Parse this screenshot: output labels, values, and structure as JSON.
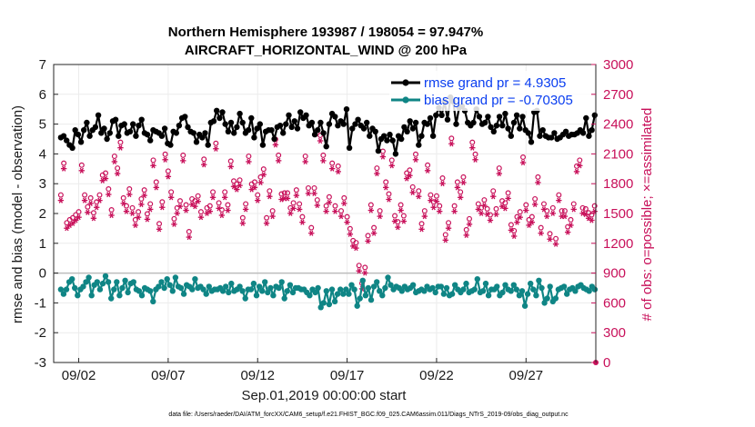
{
  "chart_data": {
    "type": "line",
    "title_line1": "Northern Hemisphere 193987 / 198054 = 97.947%",
    "title_line2": "AIRCRAFT_HORIZONTAL_WIND @ 200 hPa",
    "ylabel_left": "rmse and bias (model - observation)",
    "ylabel_right": "# of obs: o=possible; ×=assimilated",
    "xlabel": "Sep.01,2019 00:00:00 start",
    "footnote": "data file: /Users/raeder/DAI/ATM_forcXX/CAM6_setup/f.e21.FHIST_BGC.f09_025.CAM6assim.011/Diags_NTrS_2019-09/obs_diag_output.nc",
    "ylim_left": [
      -3,
      7
    ],
    "ylim_right": [
      0,
      3000
    ],
    "xlim": [
      0.6,
      30.9
    ],
    "left_ticks": [
      "-3",
      "-2",
      "-1",
      "0",
      "1",
      "2",
      "3",
      "4",
      "5",
      "6",
      "7"
    ],
    "right_ticks": [
      "0",
      "300",
      "600",
      "900",
      "1200",
      "1500",
      "1800",
      "2100",
      "2400",
      "2700",
      "3000"
    ],
    "x_ticks": [
      {
        "x": 2,
        "label": "09/02"
      },
      {
        "x": 7,
        "label": "09/07"
      },
      {
        "x": 12,
        "label": "09/12"
      },
      {
        "x": 17,
        "label": "09/17"
      },
      {
        "x": 22,
        "label": "09/22"
      },
      {
        "x": 27,
        "label": "09/27"
      }
    ],
    "legend": [
      {
        "name": "rmse grand pr = 4.9305",
        "color": "#000000"
      },
      {
        "name": "bias grand pr = -0.70305",
        "color": "#0f8585"
      }
    ],
    "colors": {
      "rmse": "#000000",
      "bias": "#0f8585",
      "obs": "#c8105a",
      "zero_line": "#bdbdbd",
      "grid": "#ececec"
    },
    "series": [
      {
        "name": "rmse",
        "values": [
          4.55,
          4.6,
          4.45,
          4.3,
          4.2,
          4.8,
          4.65,
          4.4,
          4.8,
          5.05,
          4.6,
          4.8,
          4.9,
          5.3,
          4.7,
          4.85,
          4.5,
          4.7,
          5.1,
          5.15,
          4.6,
          4.95,
          5.0,
          4.7,
          4.75,
          5.0,
          4.6,
          4.95,
          5.15,
          4.7,
          4.65,
          4.45,
          4.8,
          4.75,
          4.7,
          4.6,
          4.85,
          4.35,
          4.3,
          4.75,
          4.7,
          4.95,
          5.2,
          5.25,
          4.9,
          4.75,
          4.7,
          4.4,
          4.65,
          4.55,
          4.7,
          4.3,
          5.05,
          5.1,
          5.45,
          5.2,
          5.4,
          5.0,
          4.75,
          5.05,
          4.7,
          4.9,
          5.35,
          5.05,
          4.7,
          4.8,
          5.2,
          4.55,
          4.85,
          5.0,
          4.3,
          4.75,
          4.8,
          4.8,
          4.5,
          4.9,
          4.95,
          4.7,
          5.0,
          5.3,
          4.9,
          5.1,
          4.85,
          5.4,
          5.2,
          5.3,
          4.95,
          5.05,
          4.65,
          4.8,
          5.05,
          4.7,
          4.25,
          5.0,
          5.35,
          5.25,
          4.95,
          5.1,
          5.0,
          5.5,
          4.2,
          4.85,
          5.0,
          5.15,
          4.95,
          4.85,
          5.05,
          4.6,
          4.85,
          4.75,
          4.1,
          4.5,
          4.6,
          4.45,
          4.65,
          4.45,
          4.0,
          4.6,
          4.5,
          4.9,
          4.75,
          5.1,
          4.85,
          5.05,
          4.3,
          4.6,
          5.05,
          5.0,
          5.2,
          4.6,
          5.3,
          5.55,
          5.3,
          5.75,
          5.15,
          5.9,
          5.75,
          5.0,
          5.55,
          5.6,
          5.45,
          5.05,
          4.95,
          5.05,
          5.5,
          5.25,
          5.0,
          5.05,
          5.25,
          4.9,
          4.75,
          4.95,
          5.25,
          4.95,
          5.35,
          4.85,
          4.6,
          5.05,
          5.3,
          4.85,
          5.25,
          4.8,
          4.7,
          4.4,
          5.4,
          5.45,
          4.6,
          4.8,
          4.6,
          4.55,
          4.55,
          4.7,
          4.5,
          4.55,
          4.65,
          4.75,
          4.6,
          4.65,
          4.65,
          4.7,
          4.8,
          4.7,
          5.2,
          4.6,
          4.8,
          5.3
        ]
      },
      {
        "name": "bias",
        "values": [
          -0.55,
          -0.7,
          -0.55,
          -0.3,
          -0.2,
          -0.5,
          -0.75,
          -0.55,
          -0.45,
          -0.3,
          -0.15,
          -0.75,
          -0.4,
          -0.3,
          -0.55,
          -0.35,
          -0.1,
          -0.3,
          -0.85,
          -0.55,
          -0.3,
          -0.75,
          -0.5,
          -0.25,
          -0.65,
          -0.35,
          -0.3,
          -0.55,
          -0.6,
          -0.75,
          -0.5,
          -0.55,
          -0.6,
          -0.95,
          -0.55,
          -0.45,
          -0.3,
          -0.5,
          -0.2,
          -0.4,
          -0.6,
          -0.15,
          -0.45,
          -0.5,
          -0.7,
          -0.4,
          -0.45,
          -0.55,
          -0.2,
          -0.5,
          -0.45,
          -0.55,
          -0.7,
          -0.45,
          -0.6,
          -0.55,
          -0.55,
          -0.5,
          -0.6,
          -0.45,
          -0.65,
          -0.35,
          -0.6,
          -0.55,
          -0.45,
          -0.6,
          -0.85,
          -0.55,
          -0.55,
          -0.35,
          -0.75,
          -0.45,
          -0.6,
          -0.3,
          -0.65,
          -0.5,
          -0.75,
          -0.45,
          -0.5,
          -0.3,
          -0.85,
          -0.6,
          -0.4,
          -0.65,
          -0.5,
          -0.5,
          -0.55,
          -0.55,
          -0.65,
          -0.75,
          -0.55,
          -0.65,
          -0.5,
          -1.15,
          -1.0,
          -0.6,
          -1.05,
          -0.55,
          -0.95,
          -0.7,
          -0.55,
          -0.7,
          -0.55,
          -0.7,
          -0.4,
          -0.55,
          -1.1,
          -0.85,
          -0.25,
          -0.75,
          -0.5,
          -0.9,
          -0.45,
          -0.3,
          -0.6,
          -0.75,
          -0.5,
          -0.15,
          -0.4,
          -0.55,
          -0.45,
          -0.5,
          -0.6,
          -0.45,
          -0.55,
          -0.5,
          -0.4,
          -0.65,
          -0.6,
          -0.55,
          -0.6,
          -0.45,
          -0.55,
          -0.5,
          -0.65,
          -0.45,
          -0.45,
          -0.7,
          -0.5,
          -0.75,
          -0.7,
          -0.4,
          -0.55,
          -0.65,
          -0.55,
          -0.35,
          -0.65,
          -0.6,
          -0.55,
          -0.2,
          -0.65,
          -0.6,
          -0.35,
          -0.75,
          -0.55,
          -0.55,
          -0.45,
          -0.75,
          -0.65,
          -0.4,
          -0.55,
          -0.6,
          -0.4,
          -0.55,
          -0.75,
          -0.6,
          -1.1,
          -0.7,
          -0.35,
          -0.55,
          -0.75,
          -0.25,
          -0.5,
          -1.0,
          -0.85,
          -0.45,
          -0.95,
          -0.85,
          -0.55,
          -0.5,
          -0.45,
          -0.7,
          -0.55,
          -0.5,
          -0.6,
          -0.45,
          -0.4,
          -0.5,
          -0.55,
          -0.6,
          -0.45,
          -0.55
        ]
      }
    ],
    "obs_possible": [
      1650,
      1970,
      1370,
      1400,
      1420,
      1450,
      1480,
      1950,
      1650,
      1530,
      1620,
      1470,
      1580,
      1650,
      1850,
      1870,
      1710,
      1500,
      2040,
      1920,
      2180,
      1620,
      1540,
      1710,
      1520,
      1400,
      1480,
      1610,
      1700,
      1460,
      1560,
      2000,
      1780,
      1360,
      1580,
      2060,
      1890,
      1680,
      1410,
      1520,
      1590,
      2050,
      1550,
      1280,
      1610,
      1590,
      1640,
      1480,
      2010,
      1520,
      1540,
      1680,
      2170,
      1570,
      1500,
      1680,
      1550,
      1990,
      1790,
      1760,
      1800,
      1420,
      1560,
      2040,
      1760,
      1780,
      1650,
      1830,
      1910,
      1420,
      1690,
      1490,
      2210,
      2050,
      1660,
      1670,
      1670,
      1520,
      1570,
      1700,
      1560,
      1430,
      2040,
      1720,
      1320,
      1720,
      1600,
      2250,
      2050,
      1540,
      1630,
      1970,
      1540,
      1940,
      1490,
      1620,
      1430,
      1310,
      1190,
      1170,
      940,
      760,
      920,
      1240,
      1550,
      1320,
      1920,
      1490,
      2090,
      1780,
      1660,
      2000,
      1440,
      1380,
      1550,
      1440,
      1870,
      1900,
      1730,
      2060,
      1690,
      1360,
      1490,
      1950,
      1650,
      1580,
      1640,
      1540,
      1820,
      1250,
      1370,
      2220,
      1540,
      1780,
      1680,
      1830,
      1300,
      1410,
      2180,
      2060,
      1560,
      1520,
      1600,
      1510,
      1450,
      1690,
      1510,
      1920,
      1590,
      1570,
      1670,
      1350,
      1290,
      1430,
      1480,
      2030,
      1550,
      1400,
      1430,
      1610,
      1830,
      1320,
      1560,
      1490,
      1260,
      1520,
      1210,
      1650,
      1490,
      1490,
      1330,
      1400,
      1560,
      1940,
      2000,
      1520,
      1510,
      1470,
      1450,
      1540
    ]
  }
}
